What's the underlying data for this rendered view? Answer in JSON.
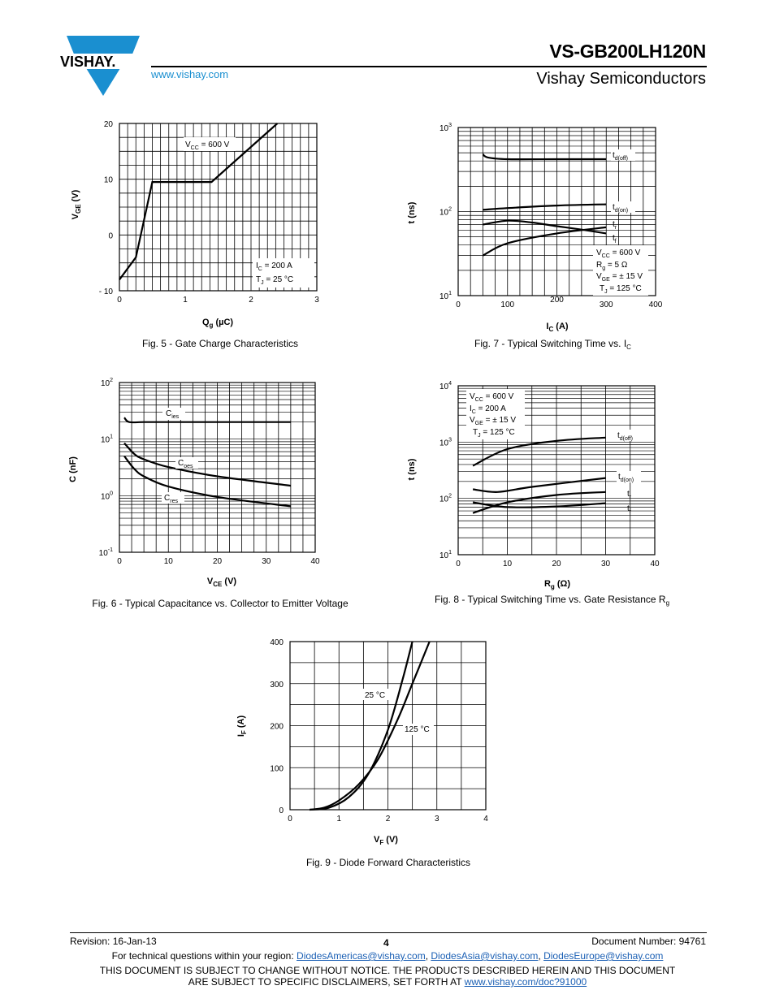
{
  "header": {
    "brand": "VISHAY.",
    "title": "VS-GB200LH120N",
    "company": "Vishay Semiconductors",
    "website": "www.vishay.com",
    "brand_color": "#1a8fd0"
  },
  "charts": {
    "fig5": {
      "caption": "Fig. 5 - Gate Charge Characteristics",
      "xlabel": "Q",
      "xlabel_sub": "g",
      "xlabel_unit": " (µC)",
      "ylabel": "V",
      "ylabel_sub": "GE",
      "ylabel_unit": " (V)",
      "note1": "V",
      "note1_sub": "CC",
      "note1_rest": " = 600 V",
      "note2": "I",
      "note2_sub": "C",
      "note2_rest": " = 200 A",
      "note3": "T",
      "note3_sub": "J",
      "note3_rest": " = 25 °C"
    },
    "fig7": {
      "caption": "Fig. 7 - Typical Switching Time vs. I",
      "caption_sub": "C",
      "xlabel": "I",
      "xlabel_sub": "C",
      "xlabel_unit": " (A)",
      "ylabel": "t (ns)",
      "lbl_tdoff": "t",
      "lbl_tdoff_sub": "d(off)",
      "lbl_tdon": "t",
      "lbl_tdon_sub": "d(on)",
      "lbl_tr": "t",
      "lbl_tr_sub": "r",
      "lbl_tf": "t",
      "lbl_tf_sub": "f",
      "cond1": "V",
      "cond1_sub": "CC",
      "cond1_rest": " = 600 V",
      "cond2": "R",
      "cond2_sub": "g",
      "cond2_rest": " = 5 Ω",
      "cond3": "V",
      "cond3_sub": "GE",
      "cond3_rest": " = ± 15 V",
      "cond4": "T",
      "cond4_sub": "J",
      "cond4_rest": " = 125 °C"
    },
    "fig6": {
      "caption": "Fig. 6 - Typical Capacitance vs. Collector to Emitter Voltage",
      "xlabel": "V",
      "xlabel_sub": "CE",
      "xlabel_unit": " (V)",
      "ylabel": "C (nF)",
      "lbl_cies": "C",
      "lbl_cies_sub": "ies",
      "lbl_coes": "C",
      "lbl_coes_sub": "oes",
      "lbl_cres": "C",
      "lbl_cres_sub": "res"
    },
    "fig8": {
      "caption": "Fig. 8 - Typical Switching Time vs. Gate Resistance R",
      "caption_sub": "g",
      "xlabel": "R",
      "xlabel_sub": "g",
      "xlabel_unit": " (Ω)",
      "ylabel": "t (ns)",
      "lbl_tdoff": "t",
      "lbl_tdoff_sub": "d(off)",
      "lbl_tdon": "t",
      "lbl_tdon_sub": "d(on)",
      "lbl_tr": "t",
      "lbl_tr_sub": "r",
      "lbl_tf": "t",
      "lbl_tf_sub": "f",
      "cond1": "V",
      "cond1_sub": "CC",
      "cond1_rest": " = 600 V",
      "cond2": "I",
      "cond2_sub": "C",
      "cond2_rest": " = 200 A",
      "cond3": "V",
      "cond3_sub": "GE",
      "cond3_rest": " = ± 15 V",
      "cond4": "T",
      "cond4_sub": "J",
      "cond4_rest": " = 125 °C"
    },
    "fig9": {
      "caption": "Fig. 9 - Diode Forward Characteristics",
      "xlabel": "V",
      "xlabel_sub": "F",
      "xlabel_unit": " (V)",
      "ylabel": "I",
      "ylabel_sub": "F",
      "ylabel_unit": " (A)",
      "lbl_25": "25 °C",
      "lbl_125": "125 °C"
    }
  },
  "footer": {
    "revision": "Revision: 16-Jan-13",
    "page": "4",
    "docnum": "Document Number: 94761",
    "contact_prefix": "For technical questions within your region: ",
    "email1": "DiodesAmericas@vishay.com",
    "sep1": ", ",
    "email2": "DiodesAsia@vishay.com",
    "sep2": ", ",
    "email3": "DiodesEurope@vishay.com",
    "disclaimer1": "THIS DOCUMENT IS SUBJECT TO CHANGE WITHOUT NOTICE. THE PRODUCTS DESCRIBED HEREIN AND THIS DOCUMENT",
    "disclaimer2_prefix": "ARE SUBJECT TO SPECIFIC DISCLAIMERS, SET FORTH AT ",
    "disclaimer_link": "www.vishay.com/doc?91000"
  },
  "chart_data": [
    {
      "id": "fig5",
      "type": "line",
      "xlim": [
        0,
        3
      ],
      "ylim": [
        -10,
        20
      ],
      "xticks": [
        "0",
        "1",
        "2",
        "3"
      ],
      "yticks": [
        "20",
        "10",
        "0",
        "- 10"
      ],
      "grid": true,
      "series": [
        {
          "x": [
            0,
            0.25,
            0.5,
            1.4,
            2.4
          ],
          "y": [
            -8,
            -4,
            9.5,
            9.5,
            20
          ]
        }
      ]
    },
    {
      "id": "fig7",
      "type": "line",
      "xlim": [
        0,
        400
      ],
      "ylim": [
        10,
        1000
      ],
      "yscale": "log",
      "xticks": [
        "0",
        "100",
        "200",
        "300",
        "400"
      ],
      "yticks": [
        {
          "base": "10",
          "exp": "3"
        },
        {
          "base": "10",
          "exp": "2"
        },
        {
          "base": "10",
          "exp": "1"
        }
      ],
      "grid": true,
      "series": [
        {
          "name": "t_d(off)",
          "x": [
            50,
            60,
            100,
            200,
            300
          ],
          "y": [
            480,
            440,
            420,
            420,
            420
          ]
        },
        {
          "name": "t_d(on)",
          "x": [
            50,
            100,
            200,
            300
          ],
          "y": [
            105,
            110,
            118,
            122
          ]
        },
        {
          "name": "t_r",
          "x": [
            50,
            100,
            200,
            300
          ],
          "y": [
            30,
            42,
            55,
            65
          ]
        },
        {
          "name": "t_f",
          "x": [
            50,
            100,
            150,
            200,
            250,
            300
          ],
          "y": [
            70,
            78,
            74,
            67,
            61,
            55
          ]
        }
      ]
    },
    {
      "id": "fig6",
      "type": "line",
      "xlim": [
        0,
        40
      ],
      "ylim": [
        0.1,
        100
      ],
      "yscale": "log",
      "xticks": [
        "0",
        "10",
        "20",
        "30",
        "40"
      ],
      "yticks": [
        {
          "base": "10",
          "exp": "2"
        },
        {
          "base": "10",
          "exp": "1"
        },
        {
          "base": "10",
          "exp": "0"
        },
        {
          "base": "10",
          "exp": "-1"
        }
      ],
      "grid": true,
      "series": [
        {
          "name": "C_ies",
          "x": [
            1,
            2,
            5,
            10,
            20,
            35
          ],
          "y": [
            24,
            20,
            20,
            20,
            20,
            20
          ]
        },
        {
          "name": "C_oes",
          "x": [
            1,
            3,
            5,
            10,
            20,
            35
          ],
          "y": [
            8.5,
            5.5,
            4.4,
            3.2,
            2.2,
            1.5
          ]
        },
        {
          "name": "C_res",
          "x": [
            1,
            3,
            5,
            10,
            20,
            35
          ],
          "y": [
            5,
            3,
            2.2,
            1.45,
            0.95,
            0.65
          ]
        }
      ]
    },
    {
      "id": "fig8",
      "type": "line",
      "xlim": [
        0,
        40
      ],
      "ylim": [
        10,
        10000
      ],
      "yscale": "log",
      "xticks": [
        "0",
        "10",
        "20",
        "30",
        "40"
      ],
      "yticks": [
        {
          "base": "10",
          "exp": "4"
        },
        {
          "base": "10",
          "exp": "3"
        },
        {
          "base": "10",
          "exp": "2"
        },
        {
          "base": "10",
          "exp": "1"
        }
      ],
      "grid": true,
      "series": [
        {
          "name": "t_d(off)",
          "x": [
            3,
            10,
            20,
            30
          ],
          "y": [
            380,
            750,
            1050,
            1200
          ]
        },
        {
          "name": "t_d(on)",
          "x": [
            3,
            8,
            15,
            30
          ],
          "y": [
            145,
            130,
            160,
            230
          ]
        },
        {
          "name": "t_r",
          "x": [
            3,
            10,
            20,
            30
          ],
          "y": [
            55,
            85,
            115,
            130
          ]
        },
        {
          "name": "t_f",
          "x": [
            3,
            10,
            20,
            30
          ],
          "y": [
            85,
            70,
            72,
            82
          ]
        }
      ]
    },
    {
      "id": "fig9",
      "type": "line",
      "xlim": [
        0,
        4
      ],
      "ylim": [
        0,
        400
      ],
      "xticks": [
        "0",
        "1",
        "2",
        "3",
        "4"
      ],
      "yticks": [
        "400",
        "300",
        "200",
        "100",
        "0"
      ],
      "grid": true,
      "series": [
        {
          "name": "25 °C",
          "x": [
            0.4,
            0.8,
            1.2,
            1.6,
            2.0,
            2.3,
            2.5
          ],
          "y": [
            0,
            5,
            30,
            85,
            190,
            310,
            400
          ]
        },
        {
          "name": "125 °C",
          "x": [
            0.4,
            0.7,
            1.0,
            1.4,
            1.8,
            2.2,
            2.5,
            2.85
          ],
          "y": [
            0,
            5,
            22,
            60,
            120,
            215,
            300,
            400
          ]
        }
      ]
    }
  ]
}
